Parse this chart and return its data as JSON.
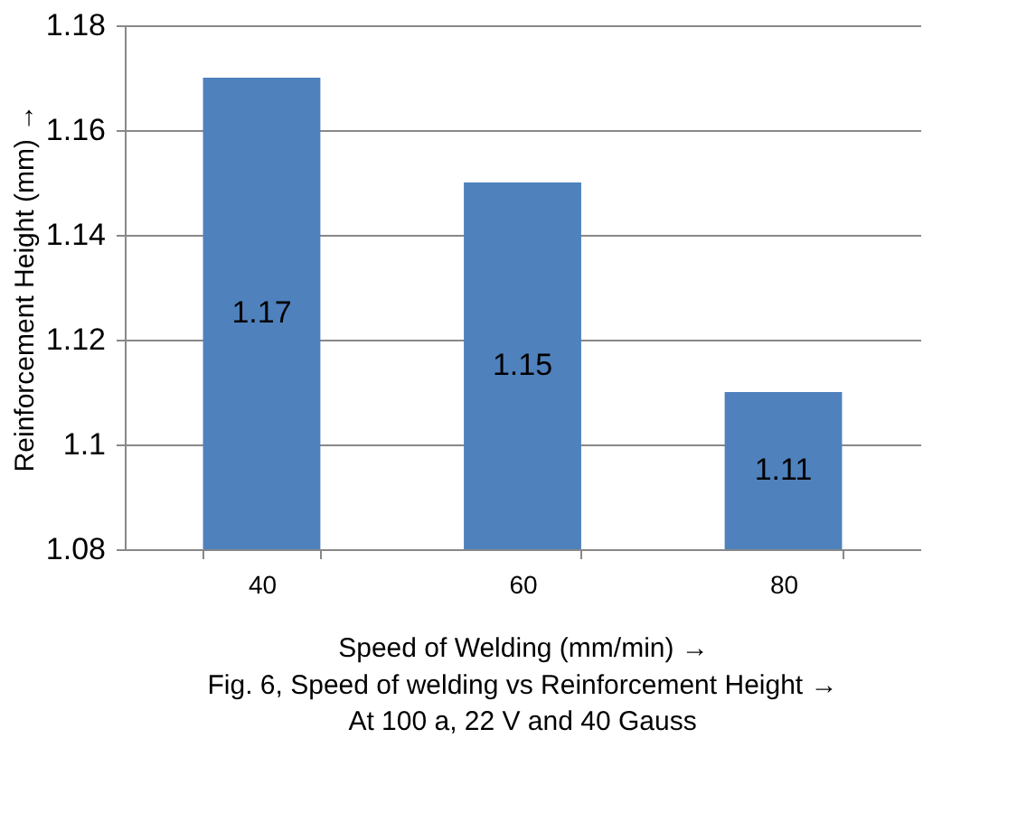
{
  "chart_data": {
    "type": "bar",
    "categories": [
      "40",
      "60",
      "80"
    ],
    "values": [
      1.17,
      1.15,
      1.11
    ],
    "color": "#4f81bd",
    "xlabel": "Speed of Welding (mm/min) →",
    "ylabel": "Reinforcement Height (mm) →",
    "annotations": [
      "Fig. 6, Speed of welding vs Reinforcement Height →",
      "At 100 a, 22 V and 40 Gauss"
    ],
    "ylim": [
      1.08,
      1.18
    ],
    "yticks": [
      1.08,
      1.1,
      1.12,
      1.14,
      1.16,
      1.18
    ],
    "grid": "y",
    "data_labels": true
  }
}
